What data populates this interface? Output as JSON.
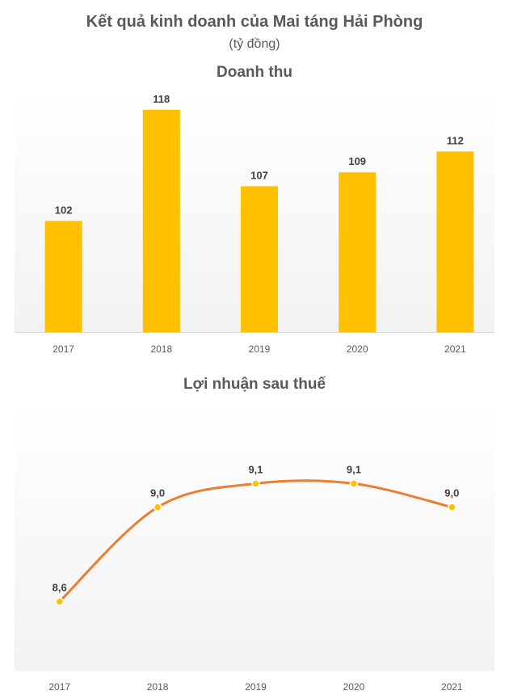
{
  "header": {
    "title": "Kết quả kinh doanh của Mai táng Hải Phòng",
    "subtitle": "(tỷ đồng)"
  },
  "colors": {
    "bar": "#FFC000",
    "line": "#ED7D31",
    "marker": "#FFC000",
    "axis": "#D9D9D9"
  },
  "chart_data": [
    {
      "type": "bar",
      "title": "Doanh thu",
      "categories": [
        "2017",
        "2018",
        "2019",
        "2020",
        "2021"
      ],
      "values": [
        102,
        118,
        107,
        109,
        112
      ],
      "value_labels": [
        "102",
        "118",
        "107",
        "109",
        "112"
      ],
      "ylim": [
        86,
        121
      ],
      "grid": false,
      "legend": "none"
    },
    {
      "type": "line",
      "title": "Lợi nhuận sau thuế",
      "categories": [
        "2017",
        "2018",
        "2019",
        "2020",
        "2021"
      ],
      "values": [
        8.6,
        9.0,
        9.1,
        9.1,
        9.0
      ],
      "value_labels": [
        "8,6",
        "9,0",
        "9,1",
        "9,1",
        "9,0"
      ],
      "ylim": [
        8.3,
        9.3
      ],
      "smooth": true,
      "grid": false,
      "legend": "none"
    }
  ]
}
